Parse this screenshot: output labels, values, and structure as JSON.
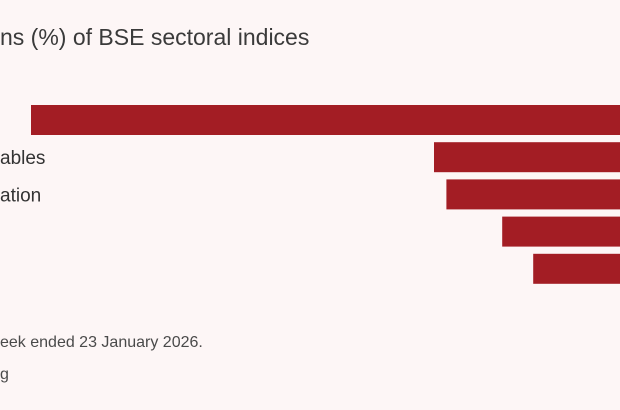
{
  "chart_data": {
    "type": "bar",
    "orientation": "horizontal",
    "title": "ns (%) of BSE sectoral indices",
    "categories": [
      "",
      "ables",
      "ation",
      "",
      ""
    ],
    "values": [
      -9.5,
      -3.0,
      -2.8,
      -1.9,
      -1.4
    ],
    "xlim": [
      -10,
      0
    ],
    "bar_color": "#a31d24",
    "footnote": "eek ended 23 January 2026.",
    "source": "g"
  }
}
